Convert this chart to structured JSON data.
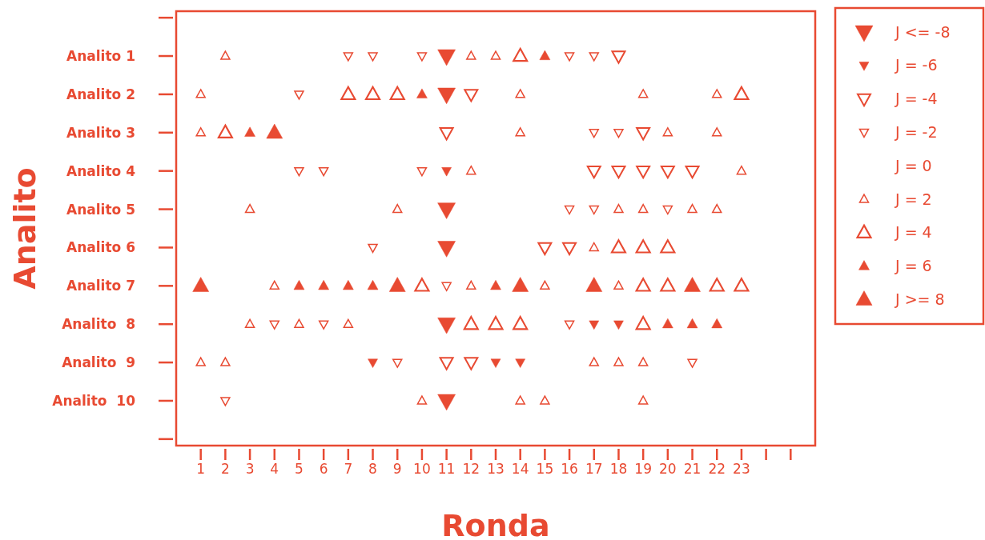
{
  "chart_data": {
    "type": "scatter",
    "orientation": "horizontal",
    "xlabel": "Ronda",
    "ylabel": "Analito",
    "xlim": [
      0,
      26
    ],
    "xticks": [
      1,
      2,
      3,
      4,
      5,
      6,
      7,
      8,
      9,
      10,
      11,
      12,
      13,
      14,
      15,
      16,
      17,
      18,
      19,
      20,
      21,
      22,
      23,
      {
        "value": 24,
        "label": null
      },
      {
        "value": 25,
        "label": null
      }
    ],
    "categories": [
      null,
      "Analito 1",
      "Analito 2",
      "Analito 3",
      "Analito 4",
      "Analito 5",
      "Analito 6",
      "Analito 7",
      "Analito  8",
      "Analito  9",
      "Analito  10",
      null
    ],
    "legend": "top right",
    "marker": "triangle",
    "series": [
      {
        "name": "J <= -8",
        "color": "#e84a32",
        "x": [
          "Analito 1",
          "Analito 2",
          "Analito 5",
          "Analito 6",
          "Analito  8",
          "Analito  10"
        ],
        "values": [
          11,
          11,
          11,
          11,
          11,
          11
        ]
      },
      {
        "name": "J = -6",
        "color": "#e84a32",
        "x": [
          "Analito 4",
          "Analito  8",
          "Analito  8",
          "Analito  9",
          "Analito  9",
          "Analito  9"
        ],
        "values": [
          11,
          17,
          18,
          8,
          13,
          14
        ]
      },
      {
        "name": "J = -4",
        "color": "#e84a32",
        "x": [
          "Analito 1",
          "Analito 2",
          "Analito 3",
          "Analito 3",
          "Analito 4",
          "Analito 4",
          "Analito 4",
          "Analito 4",
          "Analito 4",
          "Analito 6",
          "Analito 6",
          "Analito  9",
          "Analito  9"
        ],
        "values": [
          18,
          12,
          11,
          19,
          17,
          18,
          19,
          20,
          21,
          15,
          16,
          11,
          12
        ]
      },
      {
        "name": "J = -2",
        "color": "#e84a32",
        "x": [
          "Analito 1",
          "Analito 1",
          "Analito 1",
          "Analito 1",
          "Analito 1",
          "Analito 2",
          "Analito 3",
          "Analito 3",
          "Analito 4",
          "Analito 4",
          "Analito 4",
          "Analito 5",
          "Analito 5",
          "Analito 5",
          "Analito 6",
          "Analito 7",
          "Analito  8",
          "Analito  8",
          "Analito  8",
          "Analito  9",
          "Analito  9",
          "Analito  10"
        ],
        "values": [
          7,
          8,
          10,
          16,
          17,
          5,
          17,
          18,
          5,
          6,
          10,
          16,
          17,
          20,
          8,
          11,
          4,
          6,
          16,
          9,
          21,
          2
        ]
      },
      {
        "name": "J = 0",
        "color": "#e84a32",
        "marker": "none",
        "values": [
          null,
          null,
          null,
          null,
          null,
          null,
          null,
          null,
          null,
          null,
          null,
          null
        ]
      },
      {
        "name": "J = 2",
        "color": "#e84a32",
        "x": [
          "Analito 1",
          "Analito 1",
          "Analito 1",
          "Analito 2",
          "Analito 2",
          "Analito 2",
          "Analito 2",
          "Analito 3",
          "Analito 3",
          "Analito 3",
          "Analito 3",
          "Analito 4",
          "Analito 4",
          "Analito 5",
          "Analito 5",
          "Analito 5",
          "Analito 5",
          "Analito 5",
          "Analito 5",
          "Analito 6",
          "Analito 7",
          "Analito 7",
          "Analito 7",
          "Analito 7",
          "Analito  8",
          "Analito  8",
          "Analito  8",
          "Analito  9",
          "Analito  9",
          "Analito  9",
          "Analito  9",
          "Analito  9",
          "Analito  10",
          "Analito  10",
          "Analito  10",
          "Analito  10"
        ],
        "values": [
          2,
          12,
          13,
          1,
          14,
          19,
          22,
          1,
          14,
          20,
          22,
          12,
          23,
          3,
          9,
          18,
          19,
          21,
          22,
          17,
          4,
          12,
          15,
          18,
          3,
          5,
          7,
          1,
          2,
          17,
          18,
          19,
          10,
          14,
          15,
          19
        ]
      },
      {
        "name": "J = 4",
        "color": "#e84a32",
        "x": [
          "Analito 1",
          "Analito 2",
          "Analito 2",
          "Analito 2",
          "Analito 2",
          "Analito 3",
          "Analito 6",
          "Analito 6",
          "Analito 6",
          "Analito 7",
          "Analito 7",
          "Analito 7",
          "Analito 7",
          "Analito 7",
          "Analito  8",
          "Analito  8",
          "Analito  8",
          "Analito  8"
        ],
        "values": [
          14,
          7,
          8,
          9,
          23,
          2,
          18,
          19,
          20,
          10,
          19,
          20,
          22,
          23,
          12,
          13,
          14,
          19
        ]
      },
      {
        "name": "J = 6",
        "color": "#e84a32",
        "x": [
          "Analito 1",
          "Analito 2",
          "Analito 3",
          "Analito 7",
          "Analito 7",
          "Analito 7",
          "Analito 7",
          "Analito 7",
          "Analito  8",
          "Analito  8",
          "Analito  8"
        ],
        "values": [
          15,
          10,
          3,
          5,
          6,
          7,
          8,
          13,
          20,
          21,
          22
        ]
      },
      {
        "name": "J >= 8",
        "color": "#e84a32",
        "x": [
          "Analito 3",
          "Analito 7",
          "Analito 7",
          "Analito 7",
          "Analito 7",
          "Analito 7"
        ],
        "values": [
          4,
          1,
          9,
          14,
          17,
          21
        ]
      }
    ]
  }
}
